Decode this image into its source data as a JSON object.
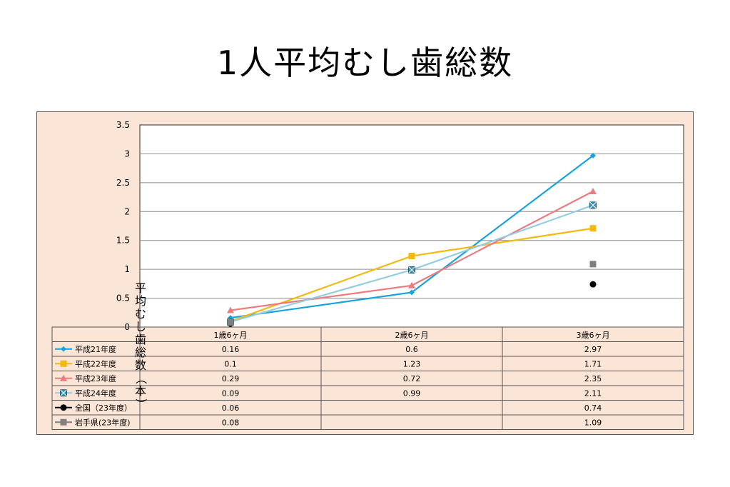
{
  "page": {
    "title": "1人平均むし歯総数"
  },
  "chart_data": {
    "type": "line",
    "title": "",
    "ylabel": "平均むし歯総数（本）",
    "ylim": [
      0,
      3.5
    ],
    "yticks": [
      "0",
      "0.5",
      "1",
      "1.5",
      "2",
      "2.5",
      "3",
      "3.5"
    ],
    "categories": [
      "1歳6ヶ月",
      "2歳6ヶ月",
      "3歳6ヶ月"
    ],
    "grid": true,
    "legend": "data-table",
    "series": [
      {
        "name": "平成21年度",
        "values": [
          0.16,
          0.6,
          2.97
        ],
        "labels": [
          "0.16",
          "0.6",
          "2.97"
        ],
        "color": "#17a3dc",
        "marker": "diamond",
        "line": true
      },
      {
        "name": "平成22年度",
        "values": [
          0.1,
          1.23,
          1.71
        ],
        "labels": [
          "0.1",
          "1.23",
          "1.71"
        ],
        "color": "#f2b90f",
        "marker": "square",
        "line": true
      },
      {
        "name": "平成23年度",
        "values": [
          0.29,
          0.72,
          2.35
        ],
        "labels": [
          "0.29",
          "0.72",
          "2.35"
        ],
        "color": "#ec7b7f",
        "marker": "triangle",
        "line": true
      },
      {
        "name": "平成24年度",
        "values": [
          0.09,
          0.99,
          2.11
        ],
        "labels": [
          "0.09",
          "0.99",
          "2.11"
        ],
        "color": "#93cde0",
        "marker": "xsquare",
        "line": true
      },
      {
        "name": "全国（23年度）",
        "values": [
          0.06,
          null,
          0.74
        ],
        "labels": [
          "0.06",
          "",
          "0.74"
        ],
        "color": "#000000",
        "marker": "circle",
        "line": false
      },
      {
        "name": "岩手県(23年度)",
        "values": [
          0.08,
          null,
          1.09
        ],
        "labels": [
          "0.08",
          "",
          "1.09"
        ],
        "color": "#808080",
        "marker": "square",
        "line": false
      }
    ]
  }
}
